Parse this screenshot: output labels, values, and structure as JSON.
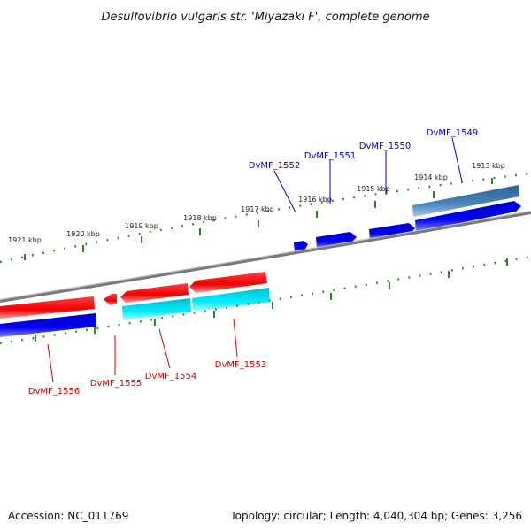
{
  "title": "Desulfovibrio vulgaris str. 'Miyazaki F', complete genome",
  "scale_labels": [
    "1921 kbp",
    "1920 kbp",
    "1919 kbp",
    "1918 kbp",
    "1917 kbp",
    "1916 kbp",
    "1915 kbp",
    "1914 kbp",
    "1913 kbp"
  ],
  "genes_forward": [
    "DvMF_1549",
    "DvMF_1550",
    "DvMF_1551",
    "DvMF_1552"
  ],
  "genes_reverse": [
    "DvMF_1553",
    "DvMF_1554",
    "DvMF_1555",
    "DvMF_1556"
  ],
  "colors": {
    "forward_label": "#0000cc",
    "reverse_label": "#cc0000",
    "forward_gene": "#0000ee",
    "reverse_gene": "#ee0000",
    "cds_cyan": "#00e5ee",
    "cds_steel": "#4682b4",
    "backbone": "#808080",
    "ticks": "#228b22"
  },
  "footer": {
    "accession": "Accession: NC_011769",
    "summary": "Topology: circular; Length: 4,040,304 bp; Genes: 3,256"
  }
}
